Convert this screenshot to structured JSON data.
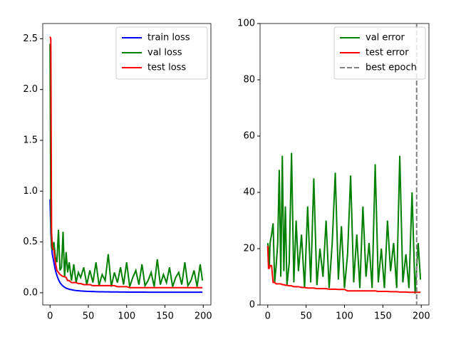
{
  "chart_data": [
    {
      "type": "line",
      "x": [
        0,
        1,
        2,
        3,
        5,
        7,
        9,
        11,
        13,
        15,
        17,
        19,
        21,
        23,
        25,
        28,
        31,
        34,
        37,
        40,
        44,
        48,
        52,
        56,
        60,
        64,
        68,
        72,
        76,
        80,
        84,
        88,
        92,
        96,
        100,
        104,
        108,
        112,
        116,
        120,
        124,
        128,
        132,
        136,
        140,
        144,
        148,
        152,
        156,
        160,
        164,
        168,
        172,
        176,
        180,
        184,
        188,
        192,
        196,
        199
      ],
      "series": [
        {
          "name": "train loss",
          "color": "#0000ff",
          "values": [
            0.92,
            0.6,
            0.45,
            0.38,
            0.3,
            0.22,
            0.17,
            0.13,
            0.1,
            0.08,
            0.065,
            0.055,
            0.045,
            0.04,
            0.035,
            0.03,
            0.025,
            0.022,
            0.02,
            0.018,
            0.016,
            0.014,
            0.013,
            0.012,
            0.011,
            0.01,
            0.01,
            0.009,
            0.009,
            0.008,
            0.008,
            0.008,
            0.007,
            0.007,
            0.007,
            0.006,
            0.006,
            0.006,
            0.006,
            0.006,
            0.006,
            0.005,
            0.005,
            0.005,
            0.005,
            0.005,
            0.005,
            0.005,
            0.005,
            0.005,
            0.005,
            0.005,
            0.005,
            0.005,
            0.005,
            0.005,
            0.005,
            0.005,
            0.005,
            0.005
          ]
        },
        {
          "name": "val loss",
          "color": "#008000",
          "values": [
            2.45,
            0.7,
            0.45,
            0.42,
            0.5,
            0.35,
            0.3,
            0.62,
            0.22,
            0.25,
            0.6,
            0.15,
            0.4,
            0.2,
            0.3,
            0.12,
            0.28,
            0.1,
            0.2,
            0.15,
            0.25,
            0.08,
            0.22,
            0.1,
            0.3,
            0.07,
            0.18,
            0.12,
            0.38,
            0.06,
            0.2,
            0.1,
            0.25,
            0.08,
            0.3,
            0.06,
            0.15,
            0.22,
            0.08,
            0.28,
            0.07,
            0.12,
            0.2,
            0.06,
            0.33,
            0.08,
            0.18,
            0.1,
            0.25,
            0.06,
            0.15,
            0.2,
            0.08,
            0.3,
            0.07,
            0.12,
            0.22,
            0.06,
            0.28,
            0.12
          ]
        },
        {
          "name": "test loss",
          "color": "#ff0000",
          "values": [
            2.52,
            2.5,
            0.6,
            0.45,
            0.42,
            0.3,
            0.22,
            0.2,
            0.18,
            0.17,
            0.16,
            0.16,
            0.15,
            0.12,
            0.12,
            0.1,
            0.1,
            0.1,
            0.09,
            0.09,
            0.08,
            0.08,
            0.08,
            0.07,
            0.07,
            0.07,
            0.07,
            0.07,
            0.07,
            0.07,
            0.07,
            0.06,
            0.06,
            0.06,
            0.06,
            0.05,
            0.05,
            0.05,
            0.05,
            0.05,
            0.05,
            0.05,
            0.05,
            0.05,
            0.05,
            0.05,
            0.05,
            0.05,
            0.05,
            0.05,
            0.05,
            0.05,
            0.05,
            0.05,
            0.05,
            0.05,
            0.05,
            0.05,
            0.05,
            0.05
          ]
        }
      ],
      "xlim": [
        -9.5,
        210
      ],
      "ylim": [
        -0.12,
        2.65
      ],
      "xticks": [
        0,
        50,
        100,
        150,
        200
      ],
      "yticks": [
        {
          "value": 0,
          "label": "0.0"
        },
        {
          "value": 0.5,
          "label": "0.5"
        },
        {
          "value": 1,
          "label": "1.0"
        },
        {
          "value": 1.5,
          "label": "1.5"
        },
        {
          "value": 2,
          "label": "2.0"
        },
        {
          "value": 2.5,
          "label": "2.5"
        }
      ],
      "legend": "upper right"
    },
    {
      "type": "line",
      "x": [
        0,
        1,
        2,
        3,
        5,
        7,
        9,
        11,
        13,
        15,
        17,
        19,
        21,
        23,
        25,
        28,
        31,
        34,
        37,
        40,
        44,
        48,
        52,
        56,
        60,
        64,
        68,
        72,
        76,
        80,
        84,
        88,
        92,
        96,
        100,
        104,
        108,
        112,
        116,
        120,
        124,
        128,
        132,
        136,
        140,
        144,
        148,
        152,
        156,
        160,
        164,
        168,
        172,
        176,
        180,
        184,
        188,
        192,
        196,
        199
      ],
      "series": [
        {
          "name": "val error",
          "color": "#008000",
          "values": [
            22,
            20,
            13,
            22,
            25,
            29,
            8,
            14,
            22,
            48,
            10,
            53,
            12,
            35,
            7,
            15,
            54,
            8,
            30,
            12,
            25,
            6,
            35,
            8,
            45,
            7,
            20,
            10,
            30,
            6,
            22,
            47,
            9,
            28,
            6,
            18,
            46,
            8,
            25,
            6,
            35,
            10,
            22,
            6,
            50,
            8,
            20,
            6,
            30,
            12,
            22,
            6,
            53,
            8,
            18,
            6,
            40,
            4,
            22,
            9
          ]
        },
        {
          "name": "test error",
          "color": "#ff0000",
          "values": [
            21,
            13,
            13,
            14,
            14,
            8,
            8,
            7.5,
            7.5,
            7.5,
            7.5,
            7.2,
            7.2,
            7,
            7,
            6.8,
            6.8,
            6.5,
            6.5,
            6.5,
            6.2,
            6.2,
            6,
            6,
            6,
            5.8,
            5.8,
            5.8,
            5.8,
            5.6,
            5.6,
            5.6,
            5.5,
            5.5,
            5.5,
            5,
            5,
            5,
            5,
            5,
            5,
            5,
            5,
            5,
            5,
            4.8,
            4.8,
            4.8,
            4.8,
            4.7,
            4.7,
            4.7,
            4.6,
            4.6,
            4.6,
            4.5,
            4.5,
            4.5,
            4.5,
            4.5
          ]
        }
      ],
      "vlines": [
        {
          "name": "best epoch",
          "color": "#808080",
          "x": 194
        }
      ],
      "xlim": [
        -10,
        210
      ],
      "ylim": [
        0,
        100
      ],
      "xticks": [
        0,
        50,
        100,
        150,
        200
      ],
      "yticks": [
        0,
        20,
        40,
        60,
        80,
        100
      ],
      "legend": "upper right"
    }
  ]
}
